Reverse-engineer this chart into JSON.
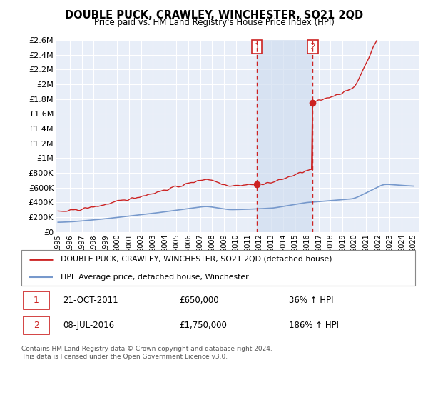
{
  "title": "DOUBLE PUCK, CRAWLEY, WINCHESTER, SO21 2QD",
  "subtitle": "Price paid vs. HM Land Registry's House Price Index (HPI)",
  "ylim": [
    0,
    2600000
  ],
  "yticks": [
    0,
    200000,
    400000,
    600000,
    800000,
    1000000,
    1200000,
    1400000,
    1600000,
    1800000,
    2000000,
    2200000,
    2400000,
    2600000
  ],
  "ytick_labels": [
    "£0",
    "£200K",
    "£400K",
    "£600K",
    "£800K",
    "£1M",
    "£1.2M",
    "£1.4M",
    "£1.6M",
    "£1.8M",
    "£2M",
    "£2.2M",
    "£2.4M",
    "£2.6M"
  ],
  "xlim_start": 1994.8,
  "xlim_end": 2025.5,
  "background_color": "#ffffff",
  "plot_bg_color": "#e8eef8",
  "grid_color": "#ffffff",
  "shade_color": "#d0ddf0",
  "ann1_x": 2011.8,
  "ann1_y": 650000,
  "ann2_x": 2016.5,
  "ann2_y": 1750000,
  "ann2_drop_y": 600000,
  "legend_label_red": "DOUBLE PUCK, CRAWLEY, WINCHESTER, SO21 2QD (detached house)",
  "legend_label_blue": "HPI: Average price, detached house, Winchester",
  "legend_color_red": "#cc2222",
  "legend_color_blue": "#7799cc",
  "ann1_date": "21-OCT-2011",
  "ann1_price": "£650,000",
  "ann1_pct": "36% ↑ HPI",
  "ann2_date": "08-JUL-2016",
  "ann2_price": "£1,750,000",
  "ann2_pct": "186% ↑ HPI",
  "footer": "Contains HM Land Registry data © Crown copyright and database right 2024.\nThis data is licensed under the Open Government Licence v3.0."
}
